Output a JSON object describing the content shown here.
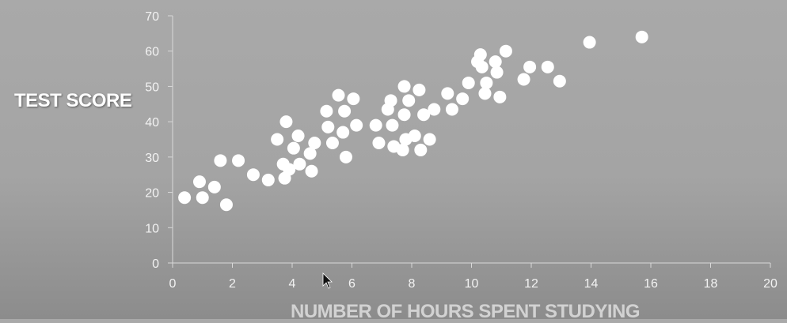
{
  "chart_data": {
    "type": "scatter",
    "xlabel": "NUMBER OF HOURS SPENT STUDYING",
    "ylabel": "TEST SCORE",
    "xlim": [
      0,
      20
    ],
    "ylim": [
      0,
      70
    ],
    "x_ticks": [
      0,
      2,
      4,
      6,
      8,
      10,
      12,
      14,
      16,
      18,
      20
    ],
    "y_ticks": [
      0,
      10,
      20,
      30,
      40,
      50,
      60,
      70
    ],
    "grid": false,
    "legend": false,
    "colors": {
      "marker": "#ffffff",
      "axis": "#d9d9d9",
      "tick_text": "#f2f2f2"
    },
    "points": [
      {
        "x": 0.4,
        "y": 18.5
      },
      {
        "x": 0.9,
        "y": 23
      },
      {
        "x": 1.0,
        "y": 18.5
      },
      {
        "x": 1.4,
        "y": 21.5
      },
      {
        "x": 1.6,
        "y": 29
      },
      {
        "x": 1.8,
        "y": 16.5
      },
      {
        "x": 2.2,
        "y": 29
      },
      {
        "x": 2.7,
        "y": 25
      },
      {
        "x": 3.2,
        "y": 23.5
      },
      {
        "x": 3.5,
        "y": 35
      },
      {
        "x": 3.7,
        "y": 28
      },
      {
        "x": 3.75,
        "y": 24
      },
      {
        "x": 3.8,
        "y": 40
      },
      {
        "x": 3.9,
        "y": 26.5
      },
      {
        "x": 4.05,
        "y": 32.5
      },
      {
        "x": 4.2,
        "y": 36
      },
      {
        "x": 4.25,
        "y": 28
      },
      {
        "x": 4.6,
        "y": 31
      },
      {
        "x": 4.65,
        "y": 26
      },
      {
        "x": 4.75,
        "y": 34
      },
      {
        "x": 5.15,
        "y": 43
      },
      {
        "x": 5.2,
        "y": 38.5
      },
      {
        "x": 5.35,
        "y": 34
      },
      {
        "x": 5.55,
        "y": 47.5
      },
      {
        "x": 5.7,
        "y": 37
      },
      {
        "x": 5.75,
        "y": 43
      },
      {
        "x": 5.8,
        "y": 30
      },
      {
        "x": 6.05,
        "y": 46.5
      },
      {
        "x": 6.15,
        "y": 39
      },
      {
        "x": 6.8,
        "y": 39
      },
      {
        "x": 6.9,
        "y": 34
      },
      {
        "x": 7.2,
        "y": 43.5
      },
      {
        "x": 7.3,
        "y": 46
      },
      {
        "x": 7.35,
        "y": 39
      },
      {
        "x": 7.4,
        "y": 33
      },
      {
        "x": 7.7,
        "y": 32
      },
      {
        "x": 7.75,
        "y": 42
      },
      {
        "x": 7.75,
        "y": 50
      },
      {
        "x": 7.8,
        "y": 35
      },
      {
        "x": 7.9,
        "y": 46
      },
      {
        "x": 8.1,
        "y": 36
      },
      {
        "x": 8.25,
        "y": 49
      },
      {
        "x": 8.3,
        "y": 32
      },
      {
        "x": 8.4,
        "y": 42
      },
      {
        "x": 8.6,
        "y": 35
      },
      {
        "x": 8.75,
        "y": 43.5
      },
      {
        "x": 9.2,
        "y": 48
      },
      {
        "x": 9.35,
        "y": 43.5
      },
      {
        "x": 9.7,
        "y": 46.5
      },
      {
        "x": 9.9,
        "y": 51
      },
      {
        "x": 10.2,
        "y": 57
      },
      {
        "x": 10.3,
        "y": 59
      },
      {
        "x": 10.35,
        "y": 55.5
      },
      {
        "x": 10.45,
        "y": 48
      },
      {
        "x": 10.5,
        "y": 51
      },
      {
        "x": 10.8,
        "y": 57
      },
      {
        "x": 10.85,
        "y": 54
      },
      {
        "x": 10.95,
        "y": 47
      },
      {
        "x": 11.15,
        "y": 60
      },
      {
        "x": 11.75,
        "y": 52
      },
      {
        "x": 11.95,
        "y": 55.5
      },
      {
        "x": 12.55,
        "y": 55.5
      },
      {
        "x": 12.95,
        "y": 51.5
      },
      {
        "x": 13.95,
        "y": 62.5
      },
      {
        "x": 15.7,
        "y": 64
      }
    ]
  }
}
